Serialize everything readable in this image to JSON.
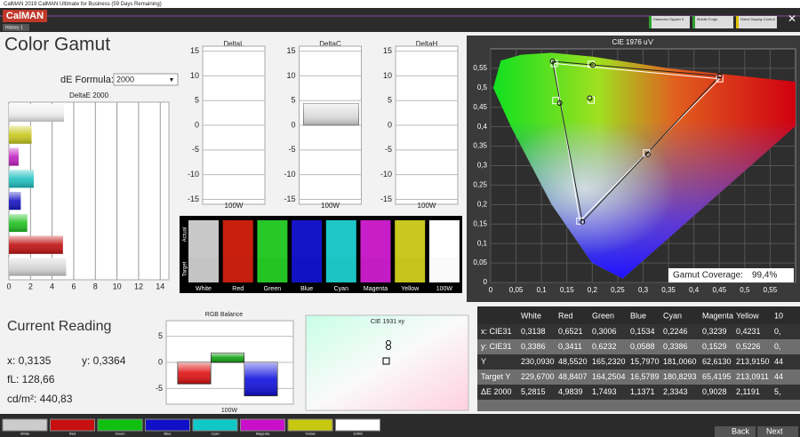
{
  "window": {
    "title": "CalMAN 2019 CalMAN Ultimate for Business (59 Days Remaining)",
    "logo": "CalMAN",
    "tab": "History 1",
    "devices": [
      "Datacolor Spyder 5",
      "Mobile Forge",
      "Direct Display Control"
    ]
  },
  "page": {
    "title": "Color Gamut",
    "de_formula_label": "dE Formula:",
    "de_formula": "2000"
  },
  "deltae_chart": {
    "title": "DeltaE 2000",
    "values": [
      5.1,
      2.1,
      0.9,
      2.3,
      1.1,
      1.7,
      5.0,
      5.3
    ],
    "colors": [
      "#eeeeee",
      "#c8c81e",
      "#c020c0",
      "#20c0c0",
      "#1414c0",
      "#20c020",
      "#c01010",
      "#d4d4d4"
    ],
    "xlim": [
      0,
      14.8
    ],
    "xticks": [
      0,
      2,
      4,
      6,
      8,
      10,
      12,
      14
    ]
  },
  "delta_charts": {
    "ylim": [
      -16,
      16
    ],
    "yticks": [
      15,
      10,
      5,
      0,
      -5,
      -10,
      -15
    ],
    "category": "100W",
    "charts": [
      {
        "title": "DeltaL",
        "value": 0
      },
      {
        "title": "DeltaC",
        "value": 4.4
      },
      {
        "title": "DeltaH",
        "value": 0
      }
    ]
  },
  "swatches": {
    "actual_label": "Actual",
    "target_label": "Target",
    "names": [
      "White",
      "Red",
      "Green",
      "Blue",
      "Cyan",
      "Magenta",
      "Yellow",
      "100W"
    ],
    "actual_colors": [
      "#c8c8c8",
      "#c8200c",
      "#28c828",
      "#1414c8",
      "#1ec8c8",
      "#c81ec8",
      "#c8c81e",
      "#ffffff"
    ],
    "target_colors": [
      "#c4c4c4",
      "#c41e0e",
      "#24c424",
      "#1212c4",
      "#1cc4c4",
      "#c41cc4",
      "#c4c41c",
      "#fafafa"
    ]
  },
  "cie1976": {
    "title": "CIE 1976 u'v'",
    "xlim": [
      0,
      0.6
    ],
    "ylim": [
      0,
      0.6
    ],
    "xticks": [
      0,
      {
        "value": 0.05,
        "label": "0,05"
      },
      {
        "value": 0.1,
        "label": "0,1"
      },
      {
        "value": 0.15,
        "label": "0,15"
      },
      {
        "value": 0.2,
        "label": "0,2"
      },
      {
        "value": 0.25,
        "label": "0,25"
      },
      {
        "value": 0.3,
        "label": "0,3"
      },
      {
        "value": 0.35,
        "label": "0,35"
      },
      {
        "value": 0.4,
        "label": "0,4"
      },
      {
        "value": 0.45,
        "label": "0,45"
      },
      {
        "value": 0.5,
        "label": "0,5"
      },
      {
        "value": 0.55,
        "label": "0,55"
      }
    ],
    "yticks": [
      0,
      {
        "value": 0.05,
        "label": "0,05"
      },
      {
        "value": 0.1,
        "label": "0,1"
      },
      {
        "value": 0.15,
        "label": "0,15"
      },
      {
        "value": 0.2,
        "label": "0,2"
      },
      {
        "value": 0.25,
        "label": "0,25"
      },
      {
        "value": 0.3,
        "label": "0,3"
      },
      {
        "value": 0.35,
        "label": "0,35"
      },
      {
        "value": 0.4,
        "label": "0,4"
      },
      {
        "value": 0.45,
        "label": "0,45"
      },
      {
        "value": 0.5,
        "label": "0,5"
      },
      {
        "value": 0.55,
        "label": "0,55"
      }
    ],
    "targets": {
      "u": [
        0.4507,
        0.125,
        0.1754,
        0.1282,
        0.3066,
        0.1978,
        0.1978
      ],
      "v": [
        0.5229,
        0.5625,
        0.1579,
        0.4672,
        0.3325,
        0.5603,
        0.4683
      ]
    },
    "measured": {
      "u": [
        0.4506,
        0.1217,
        0.1805,
        0.1358,
        0.3094,
        0.2009,
        0.195
      ],
      "v": [
        0.5303,
        0.568,
        0.1557,
        0.4607,
        0.3287,
        0.5583,
        0.4735
      ]
    },
    "coverage_label": "Gamut Coverage:",
    "coverage": "99,4%"
  },
  "reading": {
    "title": "Current Reading",
    "x": "x: 0,3135",
    "y": "y: 0,3364",
    "fl": "fL: 128,66",
    "cdm2": "cd/m²: 440,83"
  },
  "rgb_balance": {
    "title": "RGB Balance",
    "category": "100W",
    "ylim": [
      -8,
      8
    ],
    "yticks": [
      5,
      0,
      -5
    ],
    "values": [
      -4.1,
      1.8,
      -6.4
    ],
    "colors": [
      "#e01010",
      "#10a010",
      "#1010e0"
    ]
  },
  "cie1931": {
    "title": "CIE 1931 xy"
  },
  "table": {
    "header": [
      "White",
      "Red",
      "Green",
      "Blue",
      "Cyan",
      "Magenta",
      "Yellow",
      "10"
    ],
    "rows": [
      [
        "x: CIE31",
        "0,3138",
        "0,6521",
        "0,3006",
        "0,1534",
        "0,2246",
        "0,3239",
        "0,4231",
        "0,"
      ],
      [
        "y: CIE31",
        "0,3386",
        "0,3411",
        "0,6232",
        "0,0588",
        "0,3386",
        "0,1529",
        "0,5226",
        "0,"
      ],
      [
        "Y",
        "230,0930",
        "48,5520",
        "165,2320",
        "15,7970",
        "181,0060",
        "62,6130",
        "213,9150",
        "44"
      ],
      [
        "Target Y",
        "229,6700",
        "48,8407",
        "164,2504",
        "16,5789",
        "180,8293",
        "65,4195",
        "213,0911",
        "44"
      ],
      [
        "ΔE 2000",
        "5,2815",
        "4,9839",
        "1,7493",
        "1,1371",
        "2,3343",
        "0,9028",
        "2,1191",
        "5,"
      ]
    ]
  },
  "footer": {
    "colors": [
      "#cccccc",
      "#c81010",
      "#10c010",
      "#1010c8",
      "#10c8c8",
      "#c810c8",
      "#c8c810",
      "#ffffff"
    ],
    "labels": [
      "White",
      "Red",
      "Green",
      "Blue",
      "Cyan",
      "Magenta",
      "Yellow",
      "100W"
    ],
    "back": "Back",
    "next": "Next"
  }
}
